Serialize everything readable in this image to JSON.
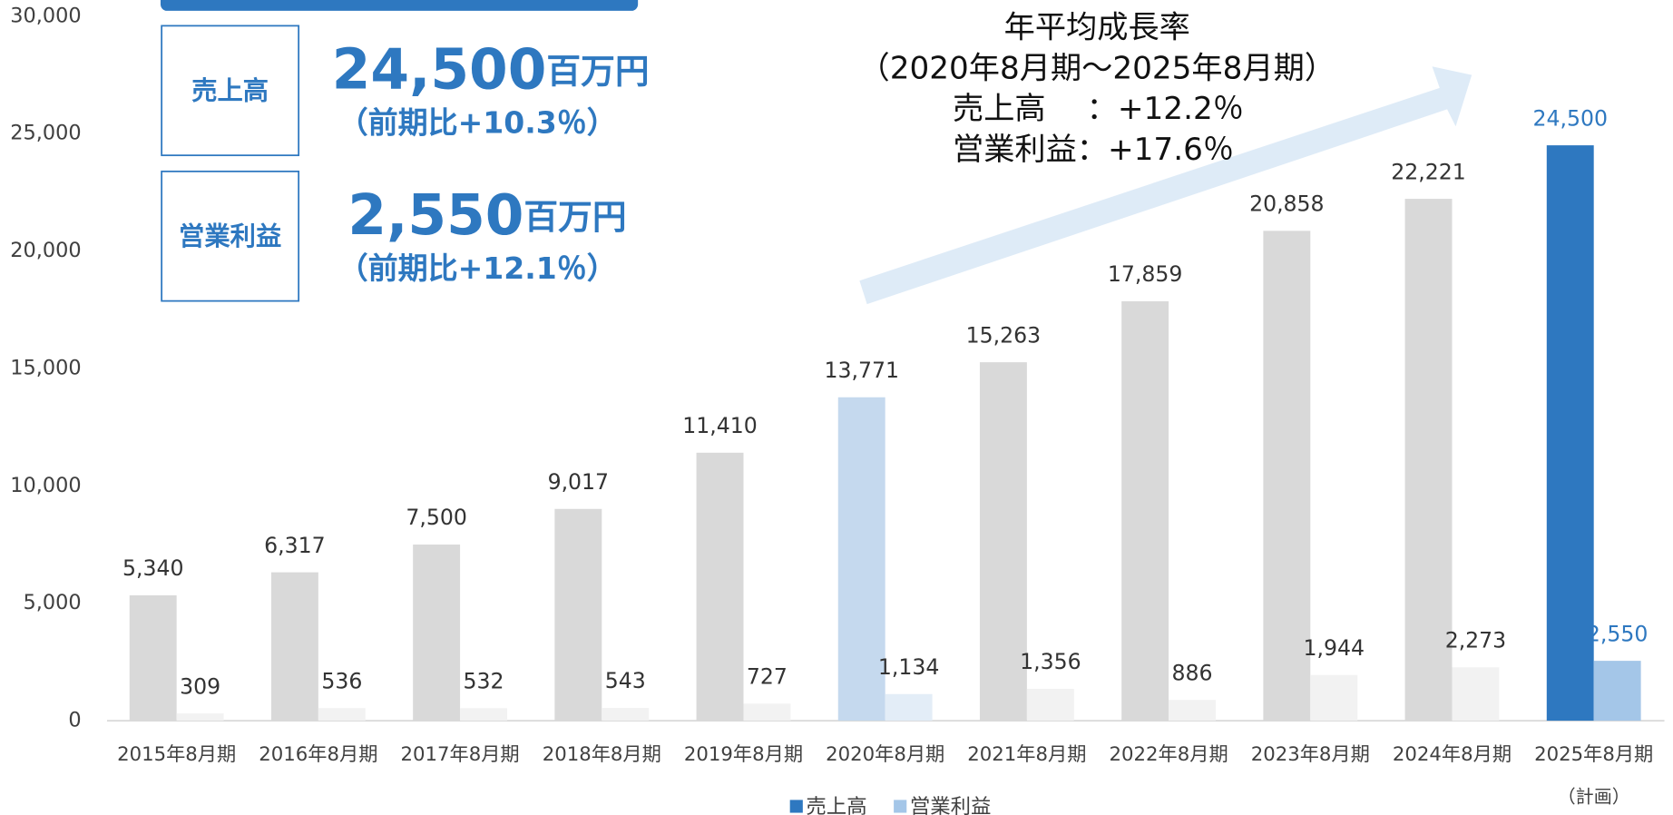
{
  "chart_data": {
    "type": "bar",
    "categories": [
      "2015年8月期",
      "2016年8月期",
      "2017年8月期",
      "2018年8月期",
      "2019年8月期",
      "2020年8月期",
      "2021年8月期",
      "2022年8月期",
      "2023年8月期",
      "2024年8月期",
      "2025年8月期"
    ],
    "series": [
      {
        "name": "売上高",
        "color": "#2e78c0",
        "values": [
          5340,
          6317,
          7500,
          9017,
          11410,
          13771,
          15263,
          17859,
          20858,
          22221,
          24500
        ],
        "value_labels": [
          "5,340",
          "6,317",
          "7,500",
          "9,017",
          "11,410",
          "13,771",
          "15,263",
          "17,859",
          "20,858",
          "22,221",
          "24,500"
        ],
        "colors": [
          "#d9d9d9",
          "#d9d9d9",
          "#d9d9d9",
          "#d9d9d9",
          "#d9d9d9",
          "#c5d9ee",
          "#d9d9d9",
          "#d9d9d9",
          "#d9d9d9",
          "#d9d9d9",
          "#2e78c0"
        ],
        "label_colors": [
          "#333333",
          "#333333",
          "#333333",
          "#333333",
          "#333333",
          "#333333",
          "#333333",
          "#333333",
          "#333333",
          "#333333",
          "#2e78c0"
        ]
      },
      {
        "name": "営業利益",
        "color": "#a4c6e8",
        "values": [
          309,
          536,
          532,
          543,
          727,
          1134,
          1356,
          886,
          1944,
          2273,
          2550
        ],
        "value_labels": [
          "309",
          "536",
          "532",
          "543",
          "727",
          "1,134",
          "1,356",
          "886",
          "1,944",
          "2,273",
          "2,550"
        ],
        "colors": [
          "#f2f2f2",
          "#f2f2f2",
          "#f2f2f2",
          "#f2f2f2",
          "#f2f2f2",
          "#e3edf7",
          "#f2f2f2",
          "#f2f2f2",
          "#f2f2f2",
          "#f2f2f2",
          "#a4c6e8"
        ],
        "label_colors": [
          "#333333",
          "#333333",
          "#333333",
          "#333333",
          "#333333",
          "#333333",
          "#333333",
          "#333333",
          "#333333",
          "#333333",
          "#2e78c0"
        ]
      }
    ],
    "ylim": [
      0,
      30000
    ],
    "yticks": [
      0,
      {
        "value": 5000,
        "label": "5,000"
      },
      {
        "value": 10000,
        "label": "10,000"
      },
      {
        "value": 15000,
        "label": "15,000"
      },
      {
        "value": 20000,
        "label": "20,000"
      },
      {
        "value": 25000,
        "label": "25,000"
      },
      {
        "value": 30000,
        "label": "30,000"
      }
    ],
    "legend": "bottom",
    "category_note": "（計画）",
    "kpis": [
      {
        "label": "売上高",
        "value": "24,500",
        "unit": "百万円",
        "change": "（前期比+10.3％）"
      },
      {
        "label": "営業利益",
        "value": "2,550",
        "unit": "百万円",
        "change": "（前期比+12.1％）"
      }
    ],
    "growth": [
      "年平均成長率",
      "（2020年8月期～2025年8月期）",
      "売上高　 ：+12.2％",
      "営業利益：+17.6％"
    ]
  }
}
